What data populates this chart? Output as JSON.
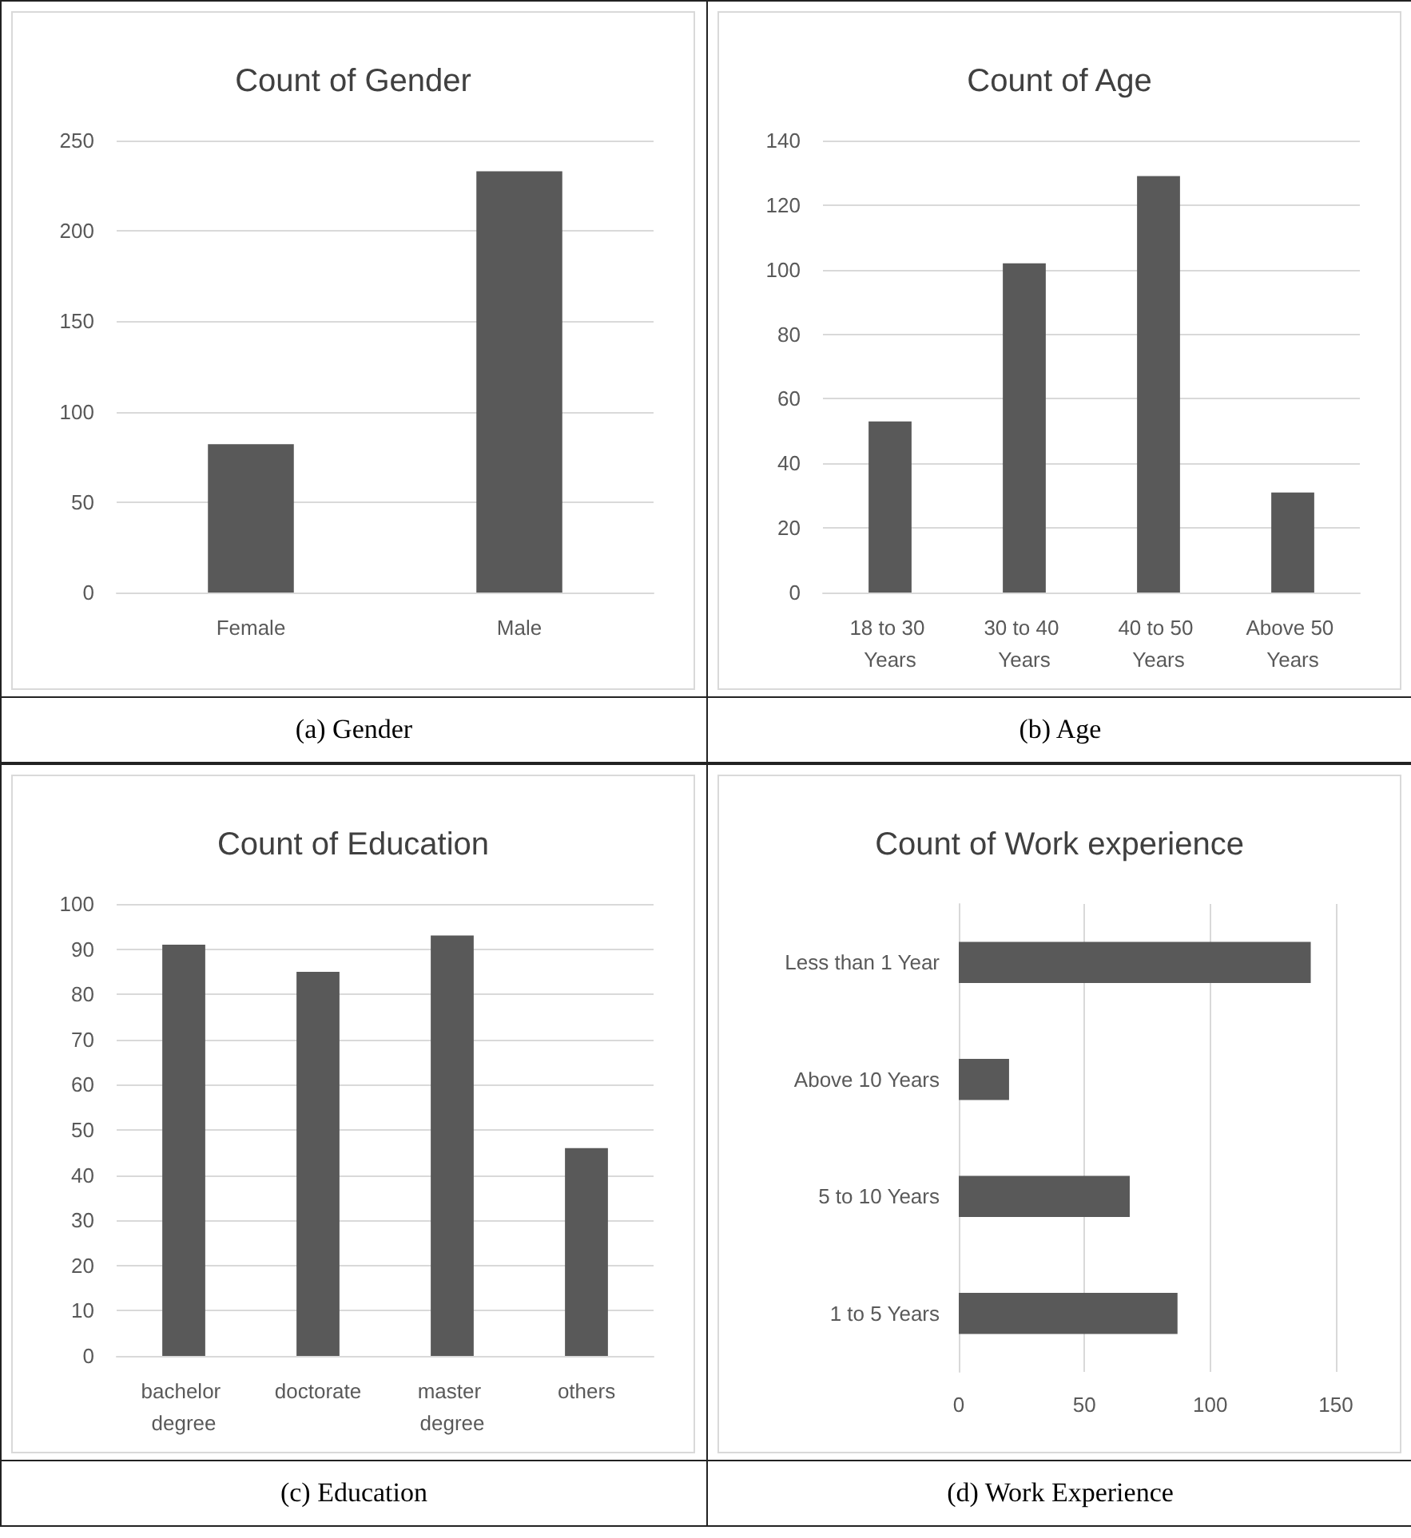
{
  "chart_data": [
    {
      "type": "bar",
      "title": "Count of Gender",
      "categories": [
        "Female",
        "Male"
      ],
      "values": [
        82,
        233
      ],
      "color": "#595959",
      "ylim": [
        0,
        250
      ],
      "yticks": [
        0,
        50,
        100,
        150,
        200,
        250
      ],
      "grid": "y",
      "annotations": [
        "(a) Gender"
      ]
    },
    {
      "type": "bar",
      "title": "Count of Age",
      "categories": [
        "18 to 30 Years",
        "30 to 40 Years",
        "40 to 50 Years",
        "Above 50 Years"
      ],
      "values": [
        53,
        102,
        129,
        31
      ],
      "color": "#595959",
      "ylim": [
        0,
        140
      ],
      "yticks": [
        0,
        20,
        40,
        60,
        80,
        100,
        120,
        140
      ],
      "grid": "y",
      "annotations": [
        "(b) Age"
      ]
    },
    {
      "type": "bar",
      "title": "Count of Education",
      "categories": [
        "bachelor degree",
        "doctorate",
        "master degree",
        "others"
      ],
      "values": [
        91,
        85,
        93,
        46
      ],
      "color": "#595959",
      "ylim": [
        0,
        100
      ],
      "yticks": [
        0,
        10,
        20,
        30,
        40,
        50,
        60,
        70,
        80,
        90,
        100
      ],
      "grid": "y",
      "annotations": [
        "(c) Education"
      ]
    },
    {
      "type": "bar",
      "orientation": "horizontal",
      "title": "Count of Work experience",
      "categories": [
        "Less than 1 Year",
        "Above 10 Years",
        "5 to 10 Years",
        "1 to 5 Years"
      ],
      "values": [
        140,
        20,
        68,
        87
      ],
      "color": "#595959",
      "xlim": [
        0,
        150
      ],
      "xticks": [
        0,
        50,
        100,
        150
      ],
      "grid": "x",
      "annotations": [
        "(d) Work Experience"
      ]
    }
  ]
}
